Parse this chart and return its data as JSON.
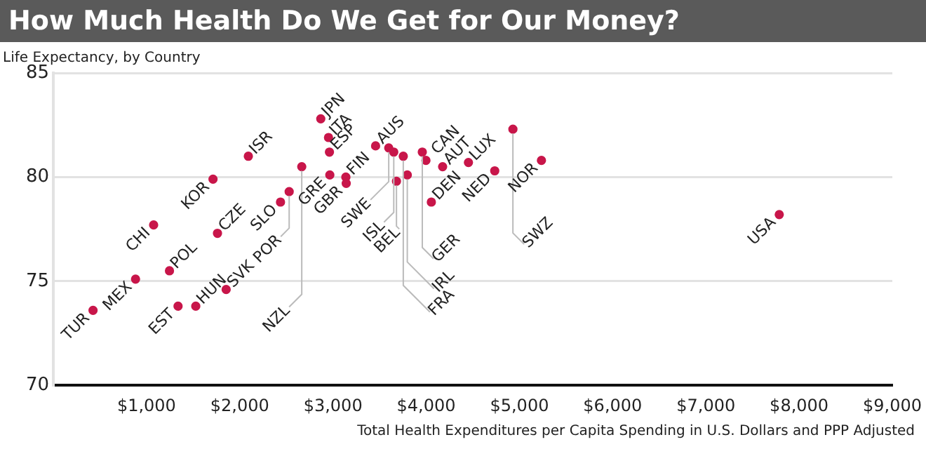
{
  "chart_data": {
    "type": "scatter",
    "title": "How Much Health Do We Get for Our Money?",
    "ylabel": "Life Expectancy, by Country",
    "xlabel": "Total Health Expenditures per Capita Spending in U.S. Dollars and PPP Adjusted",
    "series": [
      {
        "color": "#c8164a",
        "x": [
          426,
          882,
          1076,
          1246,
          1338,
          1528,
          1713,
          1761,
          1854,
          2092,
          2437,
          2530,
          2665,
          2869,
          2952,
          2962,
          2966,
          3138,
          3142,
          3457,
          3598,
          3652,
          3681,
          3754,
          3797,
          3958,
          3997,
          4055,
          4176,
          4453,
          4735,
          4930,
          5236,
          7787
        ],
        "values": [
          73.6,
          75.1,
          77.7,
          75.5,
          73.8,
          73.8,
          79.9,
          77.3,
          74.6,
          81.0,
          78.8,
          79.3,
          80.5,
          82.8,
          81.9,
          81.2,
          80.1,
          80.0,
          79.7,
          81.5,
          81.4,
          81.2,
          79.8,
          81.0,
          80.1,
          81.2,
          80.8,
          78.8,
          80.5,
          80.7,
          80.3,
          82.3,
          80.8,
          78.2
        ]
      }
    ],
    "annotations": [
      {
        "text": "TUR",
        "x": 426,
        "y": 73.6
      },
      {
        "text": "MEX",
        "x": 882,
        "y": 75.1
      },
      {
        "text": "CHI",
        "x": 1076,
        "y": 77.7
      },
      {
        "text": "POL",
        "x": 1246,
        "y": 75.5
      },
      {
        "text": "EST",
        "x": 1338,
        "y": 73.8
      },
      {
        "text": "HUN",
        "x": 1528,
        "y": 73.8
      },
      {
        "text": "KOR",
        "x": 1713,
        "y": 79.9
      },
      {
        "text": "CZE",
        "x": 1761,
        "y": 77.3
      },
      {
        "text": "SVK",
        "x": 1854,
        "y": 74.6
      },
      {
        "text": "ISR",
        "x": 2092,
        "y": 81.0
      },
      {
        "text": "SLO",
        "x": 2437,
        "y": 78.8
      },
      {
        "text": "POR",
        "x": 2530,
        "y": 79.3
      },
      {
        "text": "NZL",
        "x": 2665,
        "y": 80.5
      },
      {
        "text": "JPN",
        "x": 2869,
        "y": 82.8
      },
      {
        "text": "ITA",
        "x": 2952,
        "y": 81.9
      },
      {
        "text": "ESP",
        "x": 2962,
        "y": 81.2
      },
      {
        "text": "GRE",
        "x": 2966,
        "y": 80.1
      },
      {
        "text": "FIN",
        "x": 3138,
        "y": 80.0
      },
      {
        "text": "GBR",
        "x": 3142,
        "y": 79.7
      },
      {
        "text": "AUS",
        "x": 3457,
        "y": 81.5
      },
      {
        "text": "SWE",
        "x": 3598,
        "y": 81.4
      },
      {
        "text": "ISL",
        "x": 3652,
        "y": 81.2
      },
      {
        "text": "BEL",
        "x": 3681,
        "y": 79.8
      },
      {
        "text": "FRA",
        "x": 3754,
        "y": 81.0
      },
      {
        "text": "IRL",
        "x": 3797,
        "y": 80.1
      },
      {
        "text": "GER",
        "x": 3958,
        "y": 81.2
      },
      {
        "text": "CAN",
        "x": 3997,
        "y": 80.8
      },
      {
        "text": "DEN",
        "x": 4055,
        "y": 78.8
      },
      {
        "text": "AUT",
        "x": 4176,
        "y": 80.5
      },
      {
        "text": "LUX",
        "x": 4453,
        "y": 80.7
      },
      {
        "text": "NED",
        "x": 4735,
        "y": 80.3
      },
      {
        "text": "SWZ",
        "x": 4930,
        "y": 82.3
      },
      {
        "text": "NOR",
        "x": 5236,
        "y": 80.8
      },
      {
        "text": "USA",
        "x": 7787,
        "y": 78.2
      }
    ],
    "xlim": [
      0,
      9000
    ],
    "xticks": [
      {
        "value": 1000,
        "label": "$1,000"
      },
      {
        "value": 2000,
        "label": "$2,000"
      },
      {
        "value": 3000,
        "label": "$3,000"
      },
      {
        "value": 4000,
        "label": "$4,000"
      },
      {
        "value": 5000,
        "label": "$5,000"
      },
      {
        "value": 6000,
        "label": "$6,000"
      },
      {
        "value": 7000,
        "label": "$7,000"
      },
      {
        "value": 8000,
        "label": "$8,000"
      },
      {
        "value": 9000,
        "label": "$9,000"
      }
    ],
    "ylim": [
      70,
      85
    ],
    "yticks": [
      70,
      75,
      80,
      85
    ],
    "grid": "y",
    "marker": "circle"
  }
}
